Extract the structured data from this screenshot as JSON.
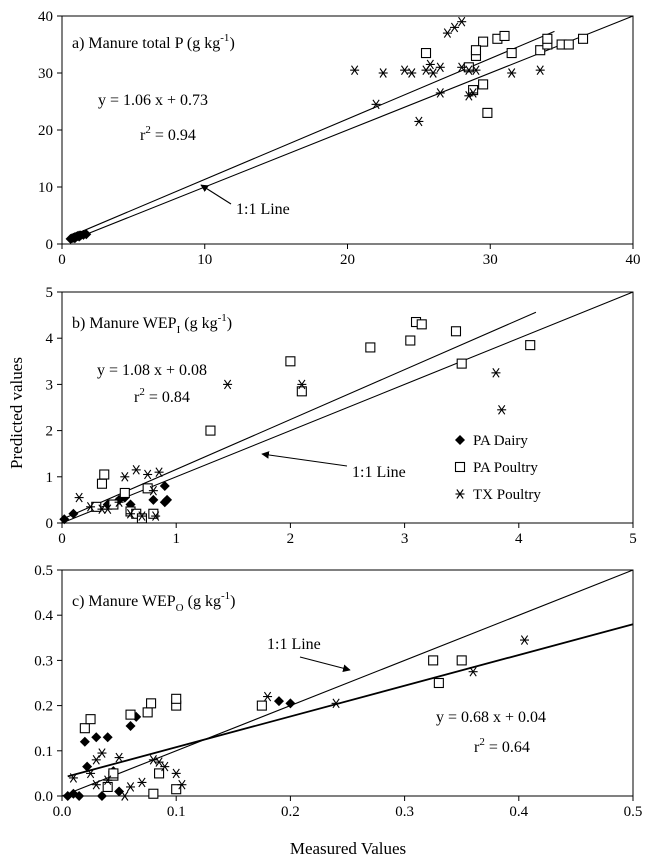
{
  "figure": {
    "ylabel": "Predicted values",
    "xlabel": "Measured Values"
  },
  "chart_data": [
    {
      "type": "scatter",
      "panel": "a)",
      "title": "a) Manure total P (g kg⁻¹)",
      "title_main": "a) Manure total P (g kg",
      "title_sup": "-1",
      "title_end": ")",
      "xlim": [
        0,
        40
      ],
      "ylim": [
        0,
        40
      ],
      "xticks": [
        0,
        10,
        20,
        30,
        40
      ],
      "yticks": [
        0,
        10,
        20,
        30,
        40
      ],
      "tick_decimals": 0,
      "equation": "y = 1.06 x + 0.73",
      "r2_prefix": "r",
      "r2_sup": "2",
      "r2_value": " = 0.94",
      "one_to_one_label": "1:1 Line",
      "fit": {
        "slope": 1.06,
        "intercept": 0.73,
        "x_range": [
          0.5,
          34.5
        ]
      },
      "one_to_one": {
        "x_range": [
          0.5,
          40
        ]
      },
      "series": [
        {
          "name": "PA Dairy",
          "marker": "diamond",
          "points": [
            [
              0.6,
              0.9
            ],
            [
              0.7,
              1.0
            ],
            [
              0.8,
              1.1
            ],
            [
              0.9,
              1.2
            ],
            [
              1.0,
              1.3
            ],
            [
              1.1,
              1.4
            ],
            [
              1.2,
              1.3
            ],
            [
              1.3,
              1.5
            ],
            [
              1.5,
              1.6
            ],
            [
              1.7,
              1.7
            ],
            [
              0.9,
              1.0
            ],
            [
              1.2,
              1.5
            ]
          ]
        },
        {
          "name": "PA Poultry",
          "marker": "square",
          "points": [
            [
              25.5,
              33.5
            ],
            [
              28.5,
              31.0
            ],
            [
              28.8,
              27.0
            ],
            [
              29.0,
              33.0
            ],
            [
              29.5,
              35.5
            ],
            [
              29.5,
              28.0
            ],
            [
              29.8,
              23.0
            ],
            [
              30.5,
              36.0
            ],
            [
              31.0,
              36.5
            ],
            [
              31.5,
              33.5
            ],
            [
              33.5,
              34.0
            ],
            [
              34.0,
              35.0
            ],
            [
              34.0,
              36.0
            ],
            [
              35.0,
              35.0
            ],
            [
              35.5,
              35.0
            ],
            [
              36.5,
              36.0
            ],
            [
              29.0,
              34.0
            ]
          ]
        },
        {
          "name": "TX Poultry",
          "marker": "star",
          "points": [
            [
              20.5,
              30.5
            ],
            [
              22.0,
              24.5
            ],
            [
              22.5,
              30.0
            ],
            [
              24.0,
              30.5
            ],
            [
              24.5,
              30.0
            ],
            [
              25.0,
              21.5
            ],
            [
              25.5,
              30.5
            ],
            [
              25.8,
              31.5
            ],
            [
              26.0,
              30.0
            ],
            [
              26.5,
              26.5
            ],
            [
              26.5,
              31.0
            ],
            [
              27.0,
              37.0
            ],
            [
              27.5,
              38.0
            ],
            [
              28.0,
              39.0
            ],
            [
              28.0,
              31.0
            ],
            [
              28.5,
              30.5
            ],
            [
              28.5,
              26.0
            ],
            [
              29.0,
              30.5
            ],
            [
              31.5,
              30.0
            ],
            [
              33.5,
              30.5
            ],
            [
              28.8,
              26.5
            ]
          ]
        }
      ]
    },
    {
      "type": "scatter",
      "panel": "b)",
      "title": "b) Manure WEP₁ (g kg⁻¹)",
      "title_main": "b) Manure WEP",
      "title_sub": "I",
      "title_mid": " (g kg",
      "title_sup": "-1",
      "title_end": ")",
      "xlim": [
        0,
        5
      ],
      "ylim": [
        0,
        5
      ],
      "xticks": [
        0,
        1,
        2,
        3,
        4,
        5
      ],
      "yticks": [
        0,
        1,
        2,
        3,
        4,
        5
      ],
      "tick_decimals": 0,
      "equation": "y = 1.08 x + 0.08",
      "r2_prefix": "r",
      "r2_sup": "2",
      "r2_value": " = 0.84",
      "one_to_one_label": "1:1 Line",
      "fit": {
        "slope": 1.08,
        "intercept": 0.08,
        "x_range": [
          0,
          4.15
        ]
      },
      "one_to_one": {
        "x_range": [
          0,
          5
        ]
      },
      "legend": {
        "position": "bottom-right",
        "items": [
          {
            "label": "PA Dairy",
            "marker": "diamond"
          },
          {
            "label": "PA Poultry",
            "marker": "square"
          },
          {
            "label": "TX Poultry",
            "marker": "star"
          }
        ]
      },
      "series": [
        {
          "name": "PA Dairy",
          "marker": "diamond",
          "points": [
            [
              0.02,
              0.08
            ],
            [
              0.1,
              0.2
            ],
            [
              0.3,
              0.35
            ],
            [
              0.4,
              0.4
            ],
            [
              0.5,
              0.5
            ],
            [
              0.55,
              0.55
            ],
            [
              0.6,
              0.4
            ],
            [
              0.8,
              0.5
            ],
            [
              0.9,
              0.8
            ],
            [
              0.9,
              0.45
            ],
            [
              0.92,
              0.5
            ]
          ]
        },
        {
          "name": "PA Poultry",
          "marker": "square",
          "points": [
            [
              0.3,
              0.35
            ],
            [
              0.35,
              0.85
            ],
            [
              0.37,
              1.05
            ],
            [
              0.45,
              0.4
            ],
            [
              0.55,
              0.65
            ],
            [
              0.6,
              0.25
            ],
            [
              0.65,
              0.2
            ],
            [
              0.7,
              0.1
            ],
            [
              0.75,
              0.75
            ],
            [
              0.8,
              0.2
            ],
            [
              1.3,
              2.0
            ],
            [
              2.0,
              3.5
            ],
            [
              2.1,
              2.85
            ],
            [
              2.7,
              3.8
            ],
            [
              3.05,
              3.95
            ],
            [
              3.1,
              4.35
            ],
            [
              3.15,
              4.3
            ],
            [
              3.45,
              4.15
            ],
            [
              3.5,
              3.45
            ],
            [
              4.1,
              3.85
            ]
          ]
        },
        {
          "name": "TX Poultry",
          "marker": "star",
          "points": [
            [
              0.15,
              0.55
            ],
            [
              0.25,
              0.35
            ],
            [
              0.35,
              0.3
            ],
            [
              0.4,
              0.3
            ],
            [
              0.5,
              0.45
            ],
            [
              0.55,
              1.0
            ],
            [
              0.6,
              0.2
            ],
            [
              0.65,
              1.15
            ],
            [
              0.7,
              0.15
            ],
            [
              0.75,
              1.05
            ],
            [
              0.8,
              0.7
            ],
            [
              0.82,
              0.15
            ],
            [
              0.85,
              1.1
            ],
            [
              1.45,
              3.0
            ],
            [
              2.1,
              3.0
            ],
            [
              3.8,
              3.25
            ],
            [
              3.85,
              2.45
            ]
          ]
        }
      ]
    },
    {
      "type": "scatter",
      "panel": "c)",
      "title": "c) Manure WEP₀ (g kg⁻¹)",
      "title_main": "c) Manure WEP",
      "title_sub": "O",
      "title_mid": " (g kg",
      "title_sup": "-1",
      "title_end": ")",
      "xlim": [
        0,
        0.5
      ],
      "ylim": [
        0,
        0.5
      ],
      "xticks": [
        0.0,
        0.1,
        0.2,
        0.3,
        0.4,
        0.5
      ],
      "yticks": [
        0.0,
        0.1,
        0.2,
        0.3,
        0.4,
        0.5
      ],
      "tick_decimals": 1,
      "equation": "y = 0.68 x + 0.04",
      "r2_prefix": "r",
      "r2_sup": "2",
      "r2_value": " = 0.64",
      "one_to_one_label": "1:1 Line",
      "fit": {
        "slope": 0.68,
        "intercept": 0.04,
        "x_range": [
          0.005,
          0.5
        ]
      },
      "one_to_one": {
        "x_range": [
          0,
          0.5
        ]
      },
      "series": [
        {
          "name": "PA Dairy",
          "marker": "diamond",
          "points": [
            [
              0.005,
              0.0
            ],
            [
              0.01,
              0.005
            ],
            [
              0.015,
              0.0
            ],
            [
              0.02,
              0.12
            ],
            [
              0.022,
              0.065
            ],
            [
              0.03,
              0.13
            ],
            [
              0.035,
              0.0
            ],
            [
              0.04,
              0.13
            ],
            [
              0.045,
              0.055
            ],
            [
              0.05,
              0.01
            ],
            [
              0.06,
              0.155
            ],
            [
              0.065,
              0.175
            ],
            [
              0.19,
              0.21
            ],
            [
              0.2,
              0.205
            ]
          ]
        },
        {
          "name": "PA Poultry",
          "marker": "square",
          "points": [
            [
              0.02,
              0.15
            ],
            [
              0.025,
              0.17
            ],
            [
              0.04,
              0.02
            ],
            [
              0.045,
              0.045
            ],
            [
              0.06,
              0.18
            ],
            [
              0.075,
              0.185
            ],
            [
              0.078,
              0.205
            ],
            [
              0.08,
              0.005
            ],
            [
              0.085,
              0.05
            ],
            [
              0.1,
              0.2
            ],
            [
              0.1,
              0.215
            ],
            [
              0.1,
              0.015
            ],
            [
              0.175,
              0.2
            ],
            [
              0.325,
              0.3
            ],
            [
              0.33,
              0.25
            ],
            [
              0.35,
              0.3
            ],
            [
              0.045,
              0.05
            ]
          ]
        },
        {
          "name": "TX Poultry",
          "marker": "star",
          "points": [
            [
              0.01,
              0.04
            ],
            [
              0.025,
              0.05
            ],
            [
              0.03,
              0.08
            ],
            [
              0.035,
              0.095
            ],
            [
              0.04,
              0.035
            ],
            [
              0.05,
              0.085
            ],
            [
              0.055,
              0.0
            ],
            [
              0.06,
              0.02
            ],
            [
              0.07,
              0.03
            ],
            [
              0.08,
              0.08
            ],
            [
              0.085,
              0.075
            ],
            [
              0.09,
              0.065
            ],
            [
              0.1,
              0.05
            ],
            [
              0.105,
              0.025
            ],
            [
              0.18,
              0.22
            ],
            [
              0.24,
              0.205
            ],
            [
              0.36,
              0.275
            ],
            [
              0.405,
              0.345
            ],
            [
              0.03,
              0.025
            ]
          ]
        }
      ]
    }
  ]
}
